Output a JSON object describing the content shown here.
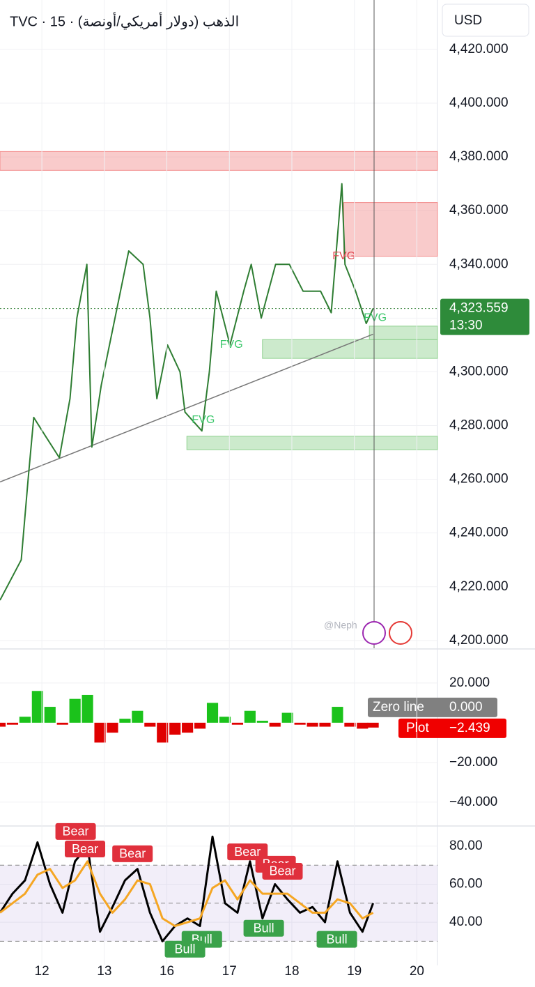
{
  "header": {
    "title": "TVC · 15 · الذهب (دولار أمريكي/أونصة)",
    "currency": "USD",
    "watermark": "@Neph"
  },
  "chart_data": [
    {
      "type": "line",
      "xlim": [
        -0.67,
        6.33
      ],
      "ylim": [
        4197.1,
        4438.4
      ],
      "grid": true,
      "yticks": [
        {
          "value": 4200,
          "label": "4,200.000"
        },
        {
          "value": 4220,
          "label": "4,220.000"
        },
        {
          "value": 4240,
          "label": "4,240.000"
        },
        {
          "value": 4260,
          "label": "4,260.000"
        },
        {
          "value": 4280,
          "label": "4,280.000"
        },
        {
          "value": 4300,
          "label": "4,300.000"
        },
        {
          "value": 4320,
          "label": "4,320.000"
        },
        {
          "value": 4340,
          "label": "4,340.000"
        },
        {
          "value": 4360,
          "label": "4,360.000"
        },
        {
          "value": 4380,
          "label": "4,380.000"
        },
        {
          "value": 4400,
          "label": "4,400.000"
        },
        {
          "value": 4420,
          "label": "4,420.000"
        }
      ],
      "series": [
        {
          "color": "#2e7d32",
          "x": [
            -0.67,
            -0.33,
            -0.22,
            -0.13,
            0.06,
            0.28,
            0.45,
            0.56,
            0.72,
            0.8,
            0.95,
            1.17,
            1.39,
            1.62,
            1.73,
            1.84,
            2.01,
            2.21,
            2.29,
            2.56,
            2.68,
            2.79,
            3.01,
            3.23,
            3.35,
            3.51,
            3.74,
            3.96,
            4.18,
            4.46,
            4.63,
            4.8,
            4.85,
            5.02,
            5.19,
            5.3
          ],
          "values": [
            4215,
            4230,
            4260,
            4283,
            4276,
            4268,
            4290,
            4320,
            4340,
            4272,
            4295,
            4320,
            4345,
            4340,
            4320,
            4290,
            4310,
            4300,
            4285,
            4278,
            4300,
            4330,
            4310,
            4330,
            4340,
            4320,
            4340,
            4340,
            4330,
            4330,
            4322,
            4370,
            4340,
            4330,
            4318,
            4323.559
          ]
        }
      ],
      "zones": [
        {
          "from": 4375,
          "to": 4382,
          "x0": -0.67,
          "x1": 6.33,
          "color": "#f28b8b"
        },
        {
          "from": 4343,
          "to": 4363,
          "x0": 4.83,
          "x1": 6.33,
          "color": "#f28b8b"
        },
        {
          "from": 4305,
          "to": 4312,
          "x0": 3.53,
          "x1": 6.33,
          "color": "#8fd18f"
        },
        {
          "from": 4312,
          "to": 4317,
          "x0": 5.24,
          "x1": 6.33,
          "color": "#8fd18f"
        },
        {
          "from": 4271,
          "to": 4276,
          "x0": 2.32,
          "x1": 6.33,
          "color": "#8fd18f"
        }
      ],
      "trendline": {
        "x": [
          -0.67,
          5.3
        ],
        "values": [
          4259,
          4314
        ]
      },
      "annotations": [
        {
          "text": "FVG",
          "x": 4.65,
          "y": 4343,
          "color": "#e0454f"
        },
        {
          "text": "FVG",
          "x": 2.85,
          "y": 4310,
          "color": "#3cc76b"
        },
        {
          "text": "FVG",
          "x": 2.4,
          "y": 4282,
          "color": "#3cc76b"
        },
        {
          "text": "FVG",
          "x": 5.15,
          "y": 4320,
          "color": "#3cc76b"
        }
      ],
      "last_price": {
        "value": 4323.559,
        "label": "4,323.559",
        "time": "13:30"
      }
    },
    {
      "type": "histogram",
      "xlim": [
        -0.67,
        6.33
      ],
      "ylim": [
        -52,
        37.5
      ],
      "yticks": [
        {
          "value": 20,
          "label": "20.000"
        },
        {
          "value": -20,
          "label": "−20.000"
        },
        {
          "value": -40,
          "label": "−40.000"
        }
      ],
      "series": [
        {
          "name": "Plot",
          "color": "#e00000",
          "up_color": "#1bc21b",
          "x": [
            -0.67,
            -0.47,
            -0.27,
            -0.07,
            0.13,
            0.33,
            0.53,
            0.73,
            0.93,
            1.13,
            1.33,
            1.53,
            1.73,
            1.93,
            2.13,
            2.33,
            2.53,
            2.73,
            2.93,
            3.13,
            3.33,
            3.53,
            3.73,
            3.93,
            4.13,
            4.33,
            4.53,
            4.73,
            4.93,
            5.13,
            5.3
          ],
          "values": [
            -2,
            -1,
            3,
            16,
            8,
            -1,
            12,
            14,
            -10,
            -5,
            2,
            6,
            -2,
            -10,
            -6,
            -5,
            -3,
            10,
            3,
            -1,
            6,
            1,
            -2,
            5,
            -1,
            -2,
            -2,
            8,
            -2,
            -3,
            -2.439
          ]
        }
      ],
      "zero_line": {
        "name": "Zero line",
        "value": 0,
        "label": "0.000"
      },
      "last_value": {
        "value": -2.439,
        "label": "−2.439"
      }
    },
    {
      "type": "line",
      "xlim": [
        -0.67,
        6.33
      ],
      "ylim": [
        17.3,
        90.6
      ],
      "yticks": [
        {
          "value": 80,
          "label": "80.00"
        },
        {
          "value": 60,
          "label": "60.00"
        },
        {
          "value": 40,
          "label": "40.00"
        }
      ],
      "xticks": [
        {
          "value": 0,
          "label": "12"
        },
        {
          "value": 1,
          "label": "13"
        },
        {
          "value": 2,
          "label": "16"
        },
        {
          "value": 3,
          "label": "17"
        },
        {
          "value": 4,
          "label": "18"
        },
        {
          "value": 5,
          "label": "19"
        },
        {
          "value": 6,
          "label": "20"
        }
      ],
      "bands": [
        30,
        50,
        70
      ],
      "series": [
        {
          "color": "#000000",
          "x": [
            -0.67,
            -0.47,
            -0.27,
            -0.07,
            0.13,
            0.33,
            0.53,
            0.73,
            0.93,
            1.13,
            1.33,
            1.53,
            1.73,
            1.93,
            2.13,
            2.33,
            2.53,
            2.73,
            2.93,
            3.13,
            3.33,
            3.53,
            3.73,
            3.93,
            4.13,
            4.33,
            4.53,
            4.73,
            4.93,
            5.13,
            5.3
          ],
          "values": [
            45,
            55,
            62,
            82,
            60,
            45,
            72,
            80,
            35,
            48,
            62,
            68,
            45,
            30,
            38,
            42,
            38,
            85,
            50,
            45,
            72,
            42,
            60,
            52,
            45,
            48,
            40,
            72,
            45,
            35,
            50
          ]
        },
        {
          "color": "#f5a623",
          "x": [
            -0.67,
            -0.47,
            -0.27,
            -0.07,
            0.13,
            0.33,
            0.53,
            0.73,
            0.93,
            1.13,
            1.33,
            1.53,
            1.73,
            1.93,
            2.13,
            2.33,
            2.53,
            2.73,
            2.93,
            3.13,
            3.33,
            3.53,
            3.73,
            3.93,
            4.13,
            4.33,
            4.53,
            4.73,
            4.93,
            5.13,
            5.3
          ],
          "values": [
            45,
            50,
            55,
            65,
            68,
            58,
            62,
            72,
            55,
            45,
            52,
            62,
            60,
            42,
            38,
            40,
            42,
            58,
            62,
            52,
            62,
            55,
            55,
            55,
            50,
            45,
            45,
            52,
            50,
            42,
            45
          ]
        }
      ],
      "signals": [
        {
          "label": "Bear",
          "x": 0.54,
          "y": 87.7,
          "color": "#e0303c"
        },
        {
          "label": "Bear",
          "x": 0.69,
          "y": 78.5,
          "color": "#e0303c"
        },
        {
          "label": "Bear",
          "x": 1.45,
          "y": 76,
          "color": "#e0303c"
        },
        {
          "label": "Bear",
          "x": 3.29,
          "y": 77,
          "color": "#e0303c"
        },
        {
          "label": "Bear",
          "x": 3.74,
          "y": 70.5,
          "color": "#e0303c"
        },
        {
          "label": "Bear",
          "x": 3.85,
          "y": 66.8,
          "color": "#e0303c"
        },
        {
          "label": "Bull",
          "x": 2.56,
          "y": 31,
          "color": "#3aa24a"
        },
        {
          "label": "Bull",
          "x": 3.55,
          "y": 36.8,
          "color": "#3aa24a"
        },
        {
          "label": "Bull",
          "x": 4.72,
          "y": 31,
          "color": "#3aa24a"
        },
        {
          "label": "Bull",
          "x": 2.29,
          "y": 25.8,
          "color": "#3aa24a"
        }
      ]
    }
  ]
}
